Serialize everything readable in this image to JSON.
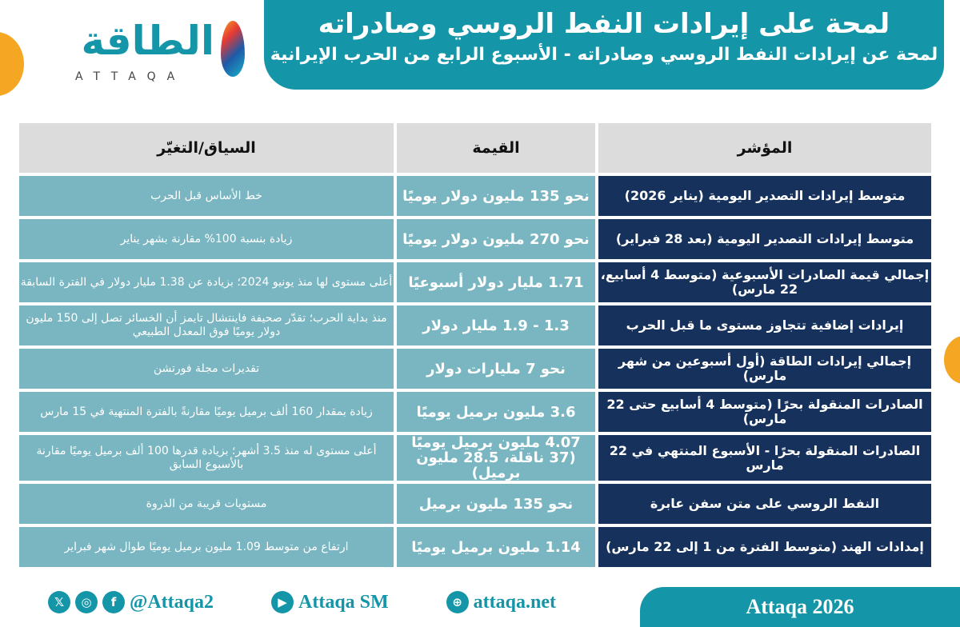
{
  "logo": {
    "arabic": "الطاقة",
    "english": "ATTAQA"
  },
  "banner": {
    "title": "لمحة على إيرادات النفط الروسي وصادراته",
    "subtitle": "لمحة عن إيرادات النفط الروسي وصادراته - الأسبوع الرابع من الحرب الإيرانية"
  },
  "table": {
    "headers": {
      "indicator": "المؤشر",
      "value": "القيمة",
      "context": "السياق/التغيّر"
    },
    "rows": [
      {
        "indicator": "متوسط إيرادات التصدير اليومية (يناير 2026)",
        "value": "نحو 135 مليون دولار يوميًا",
        "context": "خط الأساس قبل الحرب"
      },
      {
        "indicator": "متوسط إيرادات التصدير اليومية (بعد 28 فبراير)",
        "value": "نحو 270 مليون دولار يوميًا",
        "context": "زيادة بنسبة 100% مقارنة بشهر يناير"
      },
      {
        "indicator": "إجمالي قيمة الصادرات الأسبوعية (متوسط 4 أسابيع، 22 مارس)",
        "value": "1.71 مليار دولار أسبوعيًا",
        "context": "أعلى مستوى لها منذ يونيو 2024؛ بزيادة عن 1.38 مليار دولار في الفترة السابقة"
      },
      {
        "indicator": "إيرادات إضافية تتجاوز مستوى ما قبل الحرب",
        "value": "1.3 - 1.9 مليار دولار",
        "context": "منذ بداية الحرب؛ تقدّر صحيفة فاينتشال تايمز أن الخسائر تصل إلى 150 مليون دولار يوميًا فوق المعدل الطبيعي"
      },
      {
        "indicator": "إجمالي إيرادات الطاقة (أول أسبوعين من شهر مارس)",
        "value": "نحو 7 مليارات دولار",
        "context": "تقديرات مجلة فورتشن"
      },
      {
        "indicator": "الصادرات المنقولة بحرًا (متوسط 4 أسابيع حتى 22 مارس)",
        "value": "3.6 مليون برميل يوميًا",
        "context": "زيادة بمقدار 160 ألف برميل يوميًا مقارنةً بالفترة المنتهية في 15 مارس"
      },
      {
        "indicator": "الصادرات المنقولة بحرًا - الأسبوع المنتهي في 22 مارس",
        "value": "4.07 مليون برميل يوميًا (37 ناقلة، 28.5 مليون برميل)",
        "context": "أعلى مستوى له منذ 3.5 أشهر؛ بزيادة قدرها 100 ألف برميل يوميًا مقارنة بالأسبوع السابق"
      },
      {
        "indicator": "النفط الروسي على متن سفن عابرة",
        "value": "نحو 135 مليون برميل",
        "context": "مستويات قريبة من الذروة"
      },
      {
        "indicator": "إمدادات الهند (متوسط الفترة من 1 إلى 22 مارس)",
        "value": "1.14 مليون برميل يوميًا",
        "context": "ارتفاع من متوسط 1.09 مليون برميل يوميًا طوال شهر فبراير"
      }
    ]
  },
  "footer": {
    "social": "@Attaqa2",
    "youtube": "Attaqa SM",
    "website": "attaqa.net",
    "copyright": "Attaqa 2026"
  },
  "colors": {
    "teal": "#1596a8",
    "navy": "#16325c",
    "cell": "#79b6c1",
    "header": "#dcdcdc",
    "orange": "#f5a623"
  }
}
